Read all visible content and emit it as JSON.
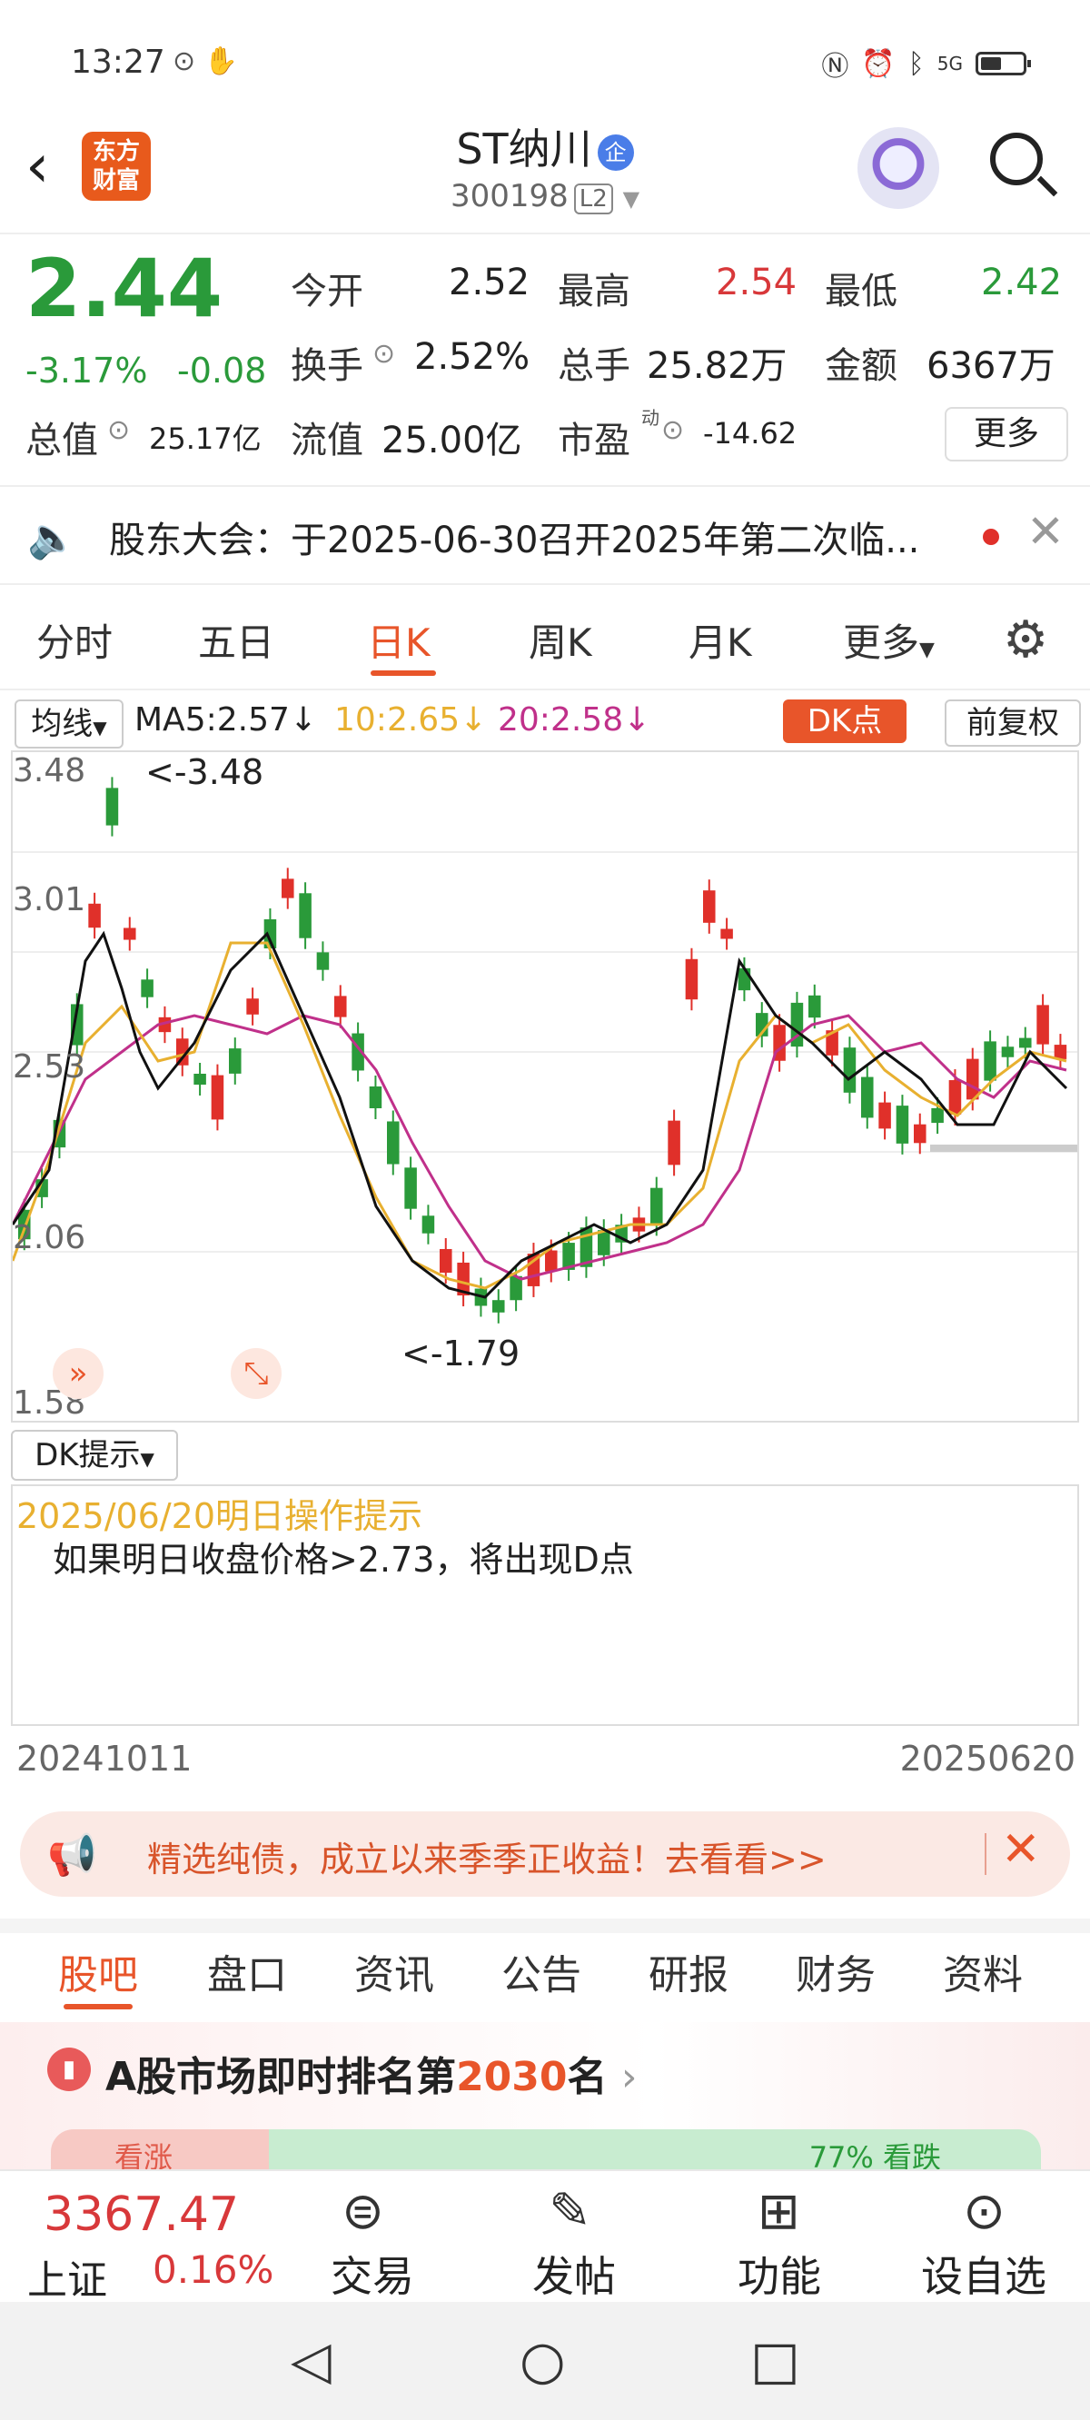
{
  "status_bar": {
    "time": "13:27",
    "signal": "5G"
  },
  "header": {
    "logo_text": "东方财富",
    "title": "ST纳川",
    "badge": "企",
    "code": "300198",
    "level": "L2"
  },
  "quote": {
    "price": "2.44",
    "change_pct": "-3.17%",
    "change": "-0.08",
    "open_label": "今开",
    "open": "2.52",
    "high_label": "最高",
    "high": "2.54",
    "low_label": "最低",
    "low": "2.42",
    "turnover_label": "换手",
    "turnover": "2.52%",
    "volume_label": "总手",
    "volume": "25.82万",
    "amount_label": "金额",
    "amount": "6367万",
    "mcap_label": "总值",
    "mcap": "25.17亿",
    "float_label": "流值",
    "float": "25.00亿",
    "pe_label": "市盈",
    "pe_sup": "动",
    "pe": "-14.62",
    "more": "更多"
  },
  "announcement": "股东大会：于2025-06-30召开2025年第二次临...",
  "tabs": [
    "分时",
    "五日",
    "日K",
    "周K",
    "月K",
    "更多"
  ],
  "ma": {
    "btn": "均线",
    "ma5": "MA5:2.57↓",
    "ma10": "10:2.65↓",
    "ma20": "20:2.58↓",
    "dk": "DK点",
    "adjust": "前复权"
  },
  "chart_data": {
    "type": "candlestick",
    "y_ticks": [
      "3.48",
      "3.01",
      "2.53",
      "2.06",
      "1.58"
    ],
    "max_label": "<-3.48",
    "min_label": "<-1.79",
    "date_start": "20241011",
    "date_end": "20250620",
    "colors": {
      "up": "#e0302a",
      "down": "#2a9a3a",
      "ma5": "#111111",
      "ma10": "#e8b030",
      "ma20": "#c0308a"
    }
  },
  "dk": {
    "btn": "DK提示",
    "date": "2025/06/20明日操作提示",
    "text": "如果明日收盘价格>2.73，将出现D点"
  },
  "promo": "精选纯债，成立以来季季正收益！去看看>>",
  "section_tabs": [
    "股吧",
    "盘口",
    "资讯",
    "公告",
    "研报",
    "财务",
    "资料"
  ],
  "rank": {
    "prefix": "A股市场即时排名第",
    "num": "2030",
    "suffix": "名",
    "up": "看涨",
    "down": "77% 看跌"
  },
  "bottom": {
    "index_value": "3367.47",
    "index_name": "上证",
    "index_pct": "0.16%",
    "items": [
      "交易",
      "发帖",
      "功能",
      "设自选"
    ]
  }
}
